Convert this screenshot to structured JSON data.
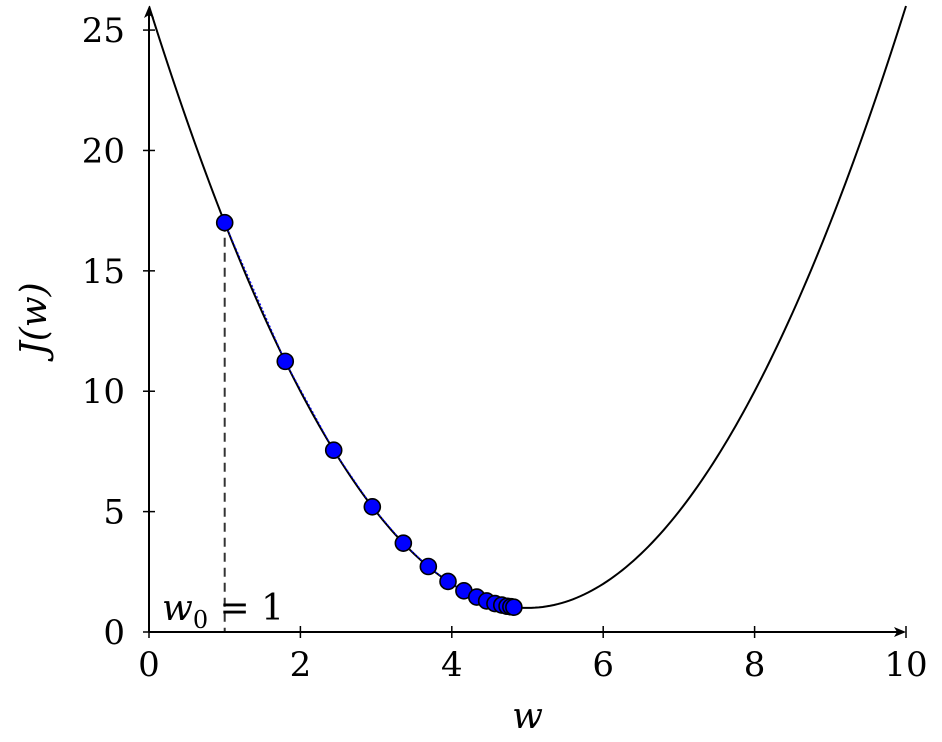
{
  "chart_data": {
    "type": "line",
    "title": "",
    "xlabel": "w",
    "ylabel": "J(w)",
    "xlim": [
      0,
      10
    ],
    "ylim": [
      0,
      26
    ],
    "xticks": [
      0,
      2,
      4,
      6,
      8,
      10
    ],
    "xtick_labels": [
      "0",
      "2",
      "4",
      "6",
      "8",
      "10"
    ],
    "yticks": [
      0,
      5,
      10,
      15,
      20,
      25
    ],
    "ytick_labels": [
      "0",
      "5",
      "10",
      "15",
      "20",
      "25"
    ],
    "grid": false,
    "curve": {
      "expression": "J(w) = (w - 5)^2 + 1",
      "x_range": [
        0,
        10
      ],
      "color": "#000000"
    },
    "iterates": {
      "color": "#0000ff",
      "points": [
        {
          "x": 1.0,
          "y": 17.0
        },
        {
          "x": 1.8,
          "y": 11.24
        },
        {
          "x": 2.44,
          "y": 7.55
        },
        {
          "x": 2.95,
          "y": 5.2
        },
        {
          "x": 3.36,
          "y": 3.69
        },
        {
          "x": 3.69,
          "y": 2.72
        },
        {
          "x": 3.95,
          "y": 2.1
        },
        {
          "x": 4.16,
          "y": 1.71
        },
        {
          "x": 4.33,
          "y": 1.45
        },
        {
          "x": 4.46,
          "y": 1.29
        },
        {
          "x": 4.57,
          "y": 1.18
        },
        {
          "x": 4.66,
          "y": 1.12
        },
        {
          "x": 4.73,
          "y": 1.07
        },
        {
          "x": 4.78,
          "y": 1.05
        },
        {
          "x": 4.82,
          "y": 1.03
        }
      ]
    },
    "annotations": [
      {
        "text_main": "w",
        "text_sub": "0",
        "text_rest": " = 1",
        "anchor_x": 1,
        "anchor_y": 0
      }
    ],
    "guide_line": {
      "x": 1,
      "style": "dashed"
    }
  }
}
